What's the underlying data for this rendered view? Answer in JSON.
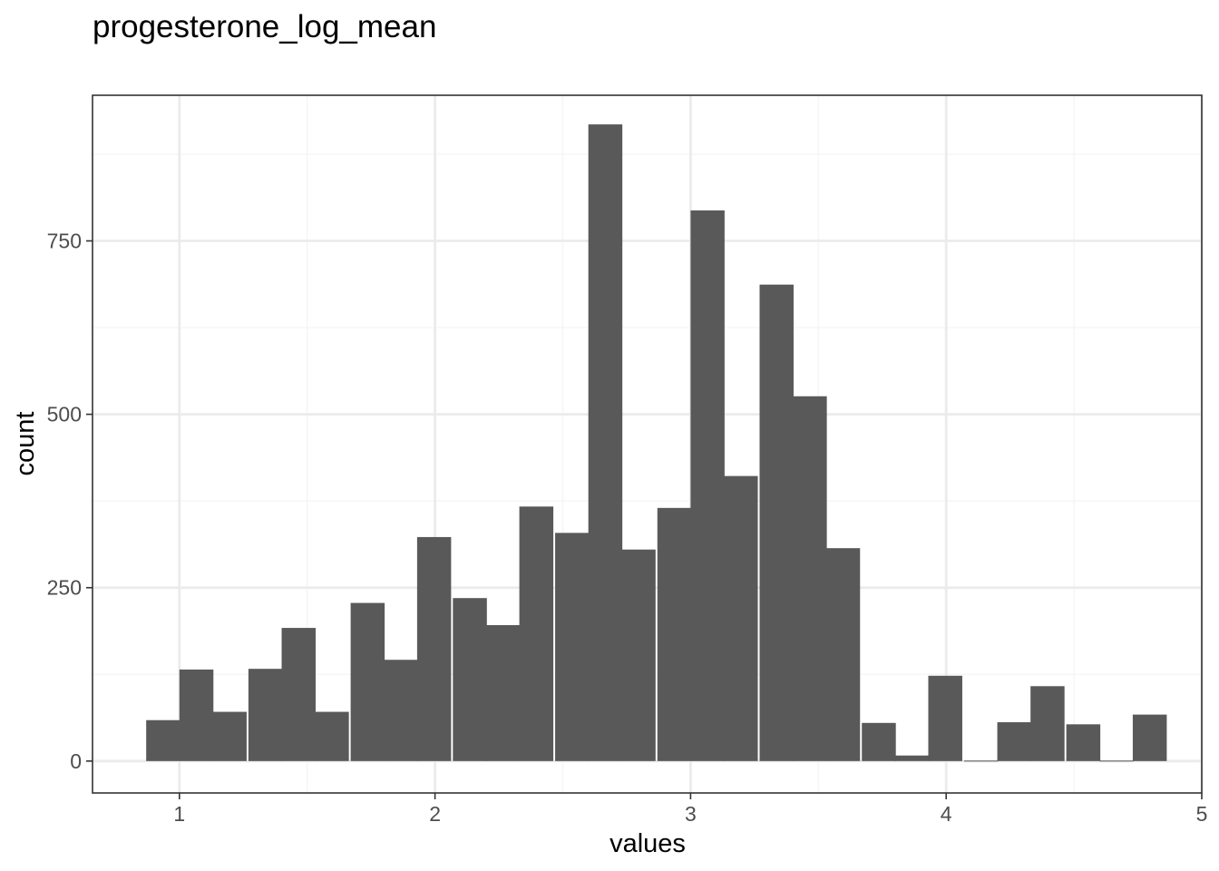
{
  "chart_data": {
    "type": "bar",
    "title": "progesterone_log_mean",
    "xlabel": "values",
    "ylabel": "count",
    "xlim": [
      0.66,
      5.0
    ],
    "ylim": [
      -46,
      960
    ],
    "x_ticks": [
      1,
      2,
      3,
      4,
      5
    ],
    "x_tick_labels": [
      "1",
      "2",
      "3",
      "4",
      "5"
    ],
    "y_ticks": [
      0,
      250,
      500,
      750
    ],
    "y_tick_labels": [
      "0",
      "250",
      "500",
      "750"
    ],
    "grid": true,
    "bin_width": 0.133,
    "bins": [
      {
        "x0": 0.87,
        "count": 59
      },
      {
        "x0": 1.0,
        "count": 132
      },
      {
        "x0": 1.13,
        "count": 71
      },
      {
        "x0": 1.27,
        "count": 133
      },
      {
        "x0": 1.4,
        "count": 192
      },
      {
        "x0": 1.53,
        "count": 71
      },
      {
        "x0": 1.67,
        "count": 228
      },
      {
        "x0": 1.8,
        "count": 146
      },
      {
        "x0": 1.93,
        "count": 323
      },
      {
        "x0": 2.07,
        "count": 235
      },
      {
        "x0": 2.2,
        "count": 196
      },
      {
        "x0": 2.33,
        "count": 367
      },
      {
        "x0": 2.47,
        "count": 329
      },
      {
        "x0": 2.6,
        "count": 918
      },
      {
        "x0": 2.73,
        "count": 305
      },
      {
        "x0": 2.87,
        "count": 365
      },
      {
        "x0": 3.0,
        "count": 794
      },
      {
        "x0": 3.13,
        "count": 411
      },
      {
        "x0": 3.27,
        "count": 687
      },
      {
        "x0": 3.4,
        "count": 526
      },
      {
        "x0": 3.53,
        "count": 307
      },
      {
        "x0": 3.67,
        "count": 55
      },
      {
        "x0": 3.8,
        "count": 8
      },
      {
        "x0": 3.93,
        "count": 123
      },
      {
        "x0": 4.07,
        "count": 0
      },
      {
        "x0": 4.2,
        "count": 56
      },
      {
        "x0": 4.33,
        "count": 108
      },
      {
        "x0": 4.47,
        "count": 53
      },
      {
        "x0": 4.6,
        "count": 0
      },
      {
        "x0": 4.73,
        "count": 67
      }
    ],
    "colors": {
      "bar_fill": "#595959",
      "panel_border": "#333333",
      "grid_major": "#ebebeb",
      "grid_minor": "#f5f5f5",
      "tick_text": "#4d4d4d"
    }
  }
}
